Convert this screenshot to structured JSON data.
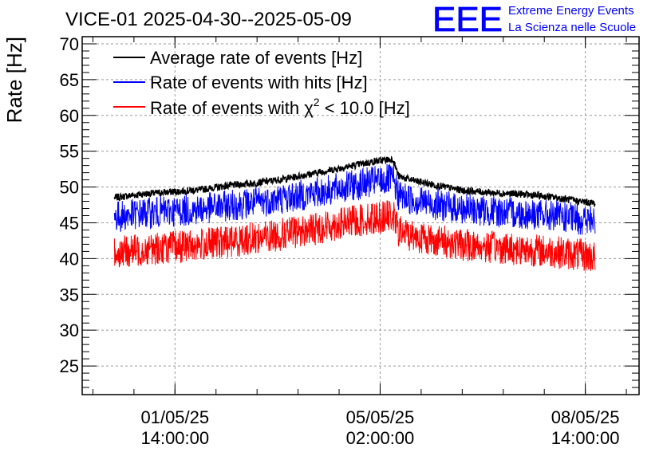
{
  "chart_data": {
    "type": "line",
    "title": "VICE-01 2025-04-30--2025-05-09",
    "ylabel": "Rate [Hz]",
    "xlabel": "",
    "ylim": [
      21,
      71
    ],
    "y_ticks": [
      25,
      30,
      35,
      40,
      45,
      50,
      55,
      60,
      65,
      70
    ],
    "x_ticks": [
      {
        "date": "01/05/25",
        "time": "14:00:00",
        "day_offset": 1.583
      },
      {
        "date": "05/05/25",
        "time": "02:00:00",
        "day_offset": 5.083
      },
      {
        "date": "08/05/25",
        "time": "14:00:00",
        "day_offset": 8.583
      }
    ],
    "x_range_days": [
      0,
      9.5
    ],
    "data_range_days": [
      0.55,
      8.75
    ],
    "grid": true,
    "legend_location": "top-left",
    "series": [
      {
        "name": "Average rate of events [Hz]",
        "color": "#000000",
        "noise": 0.5,
        "x": [
          0.55,
          1.0,
          1.5,
          2.0,
          2.5,
          3.0,
          3.5,
          4.0,
          4.5,
          5.0,
          5.3,
          5.4,
          5.6,
          6.0,
          6.5,
          7.0,
          7.5,
          8.0,
          8.5,
          8.75
        ],
        "values": [
          48.5,
          49.0,
          49.3,
          49.6,
          50.2,
          50.6,
          51.2,
          52.0,
          52.8,
          53.6,
          53.9,
          51.5,
          51.0,
          50.3,
          49.5,
          49.2,
          49.0,
          48.6,
          48.0,
          47.7
        ]
      },
      {
        "name": "Rate of events with hits [Hz]",
        "color": "#0000ff",
        "noise": 2.2,
        "x": [
          0.55,
          1.0,
          1.5,
          2.0,
          2.5,
          3.0,
          3.5,
          4.0,
          4.5,
          5.0,
          5.3,
          5.4,
          5.6,
          6.0,
          6.5,
          7.0,
          7.5,
          8.0,
          8.5,
          8.75
        ],
        "values": [
          45.8,
          46.3,
          46.6,
          46.9,
          47.4,
          47.9,
          48.5,
          49.2,
          50.0,
          50.8,
          51.1,
          48.8,
          48.3,
          47.6,
          46.9,
          46.6,
          46.3,
          46.0,
          45.5,
          45.2
        ]
      },
      {
        "name": "Rate of events with χ² < 10.0 [Hz]",
        "color": "#ff0000",
        "noise": 2.3,
        "x": [
          0.55,
          1.0,
          1.5,
          2.0,
          2.5,
          3.0,
          3.5,
          4.0,
          4.5,
          5.0,
          5.3,
          5.4,
          5.6,
          6.0,
          6.5,
          7.0,
          7.5,
          8.0,
          8.5,
          8.75
        ],
        "values": [
          40.8,
          41.2,
          41.6,
          41.9,
          42.4,
          42.9,
          43.5,
          44.2,
          45.0,
          45.7,
          46.0,
          43.8,
          43.3,
          42.6,
          41.9,
          41.6,
          41.3,
          41.0,
          40.5,
          40.2
        ]
      }
    ],
    "legend": {
      "series_0_label": "Average rate of events [Hz]",
      "series_1_label": "Rate of events with hits [Hz]",
      "series_2_prefix": "Rate of events with ",
      "series_2_symbol": "χ",
      "series_2_sup": "2",
      "series_2_suffix": " < 10.0 [Hz]"
    }
  },
  "logo": {
    "mark": "EEE",
    "line1": "Extreme Energy Events",
    "line2": "La Scienza nelle Scuole",
    "color": "#0000ff"
  }
}
